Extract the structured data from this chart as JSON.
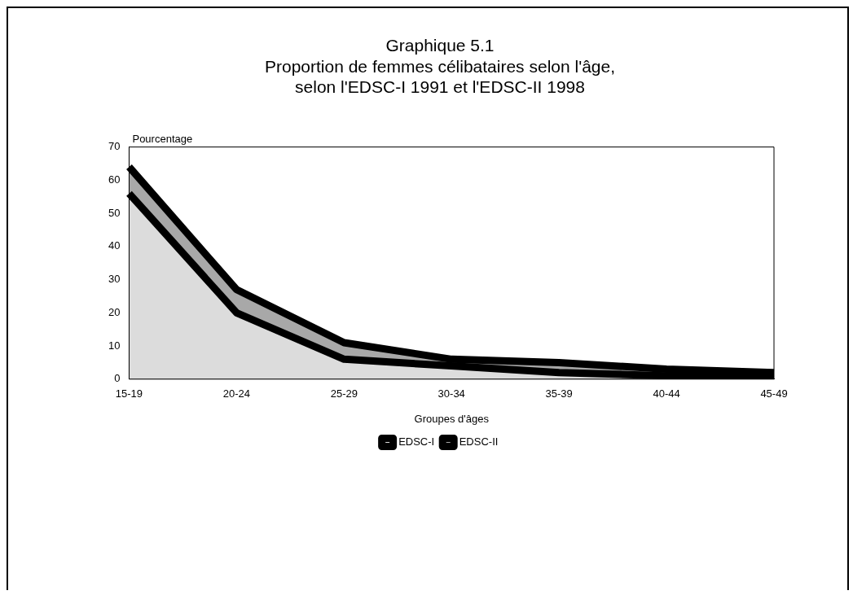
{
  "chart_data": {
    "type": "area",
    "title": [
      "Graphique 5.1",
      "Proportion de femmes célibataires selon l'âge,",
      "selon l'EDSC-I 1991 et l'EDSC-II 1998"
    ],
    "xlabel": "Groupes d'âges",
    "ylabel": "Pourcentage",
    "categories": [
      "15-19",
      "20-24",
      "25-29",
      "30-34",
      "35-39",
      "40-44",
      "45-49"
    ],
    "series": [
      {
        "name": "EDSC-I",
        "color": "#dcdcdc",
        "values": [
          56,
          20,
          6,
          4,
          2,
          1,
          1
        ]
      },
      {
        "name": "EDSC-II",
        "color": "#a8a8a8",
        "values": [
          64,
          27,
          11,
          6,
          5,
          3,
          2
        ]
      }
    ],
    "ylim": [
      0,
      70
    ],
    "yticks": [
      0,
      10,
      20,
      30,
      40,
      50,
      60,
      70
    ],
    "grid": false,
    "legend": "bottom",
    "marker": "none",
    "line_style": "solid"
  }
}
